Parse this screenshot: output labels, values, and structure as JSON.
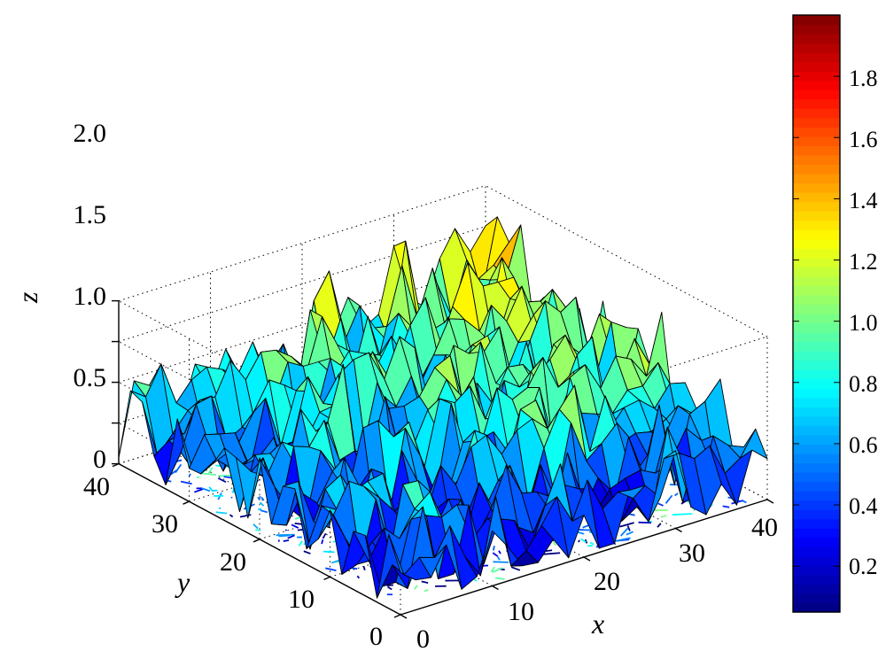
{
  "chart_data": {
    "type": "surface3d",
    "title": "",
    "xlabel": "x",
    "ylabel": "y",
    "zlabel": "z",
    "xlim": [
      0,
      40
    ],
    "ylim": [
      0,
      40
    ],
    "zlim": [
      0,
      2
    ],
    "x_ticks": [
      "0",
      "10",
      "20",
      "30",
      "40"
    ],
    "y_ticks": [
      "0",
      "10",
      "20",
      "30",
      "40"
    ],
    "z_ticks": [
      "0",
      "0.5",
      "1.0",
      "1.5",
      "2.0"
    ],
    "grid": true,
    "contour_projection_on_floor": true,
    "colormap": "jet",
    "colorbar": {
      "position": "right",
      "range": [
        0.05,
        2.0
      ],
      "ticks": [
        "0.2",
        "0.4",
        "0.6",
        "0.8",
        "1.0",
        "1.2",
        "1.4",
        "1.6",
        "1.8"
      ]
    },
    "surface_description": "noisy surface on a 41 x 41 grid; values mostly between 0.1 and 1.6, higher (about 1.2 to 1.6) near large x and large y"
  }
}
